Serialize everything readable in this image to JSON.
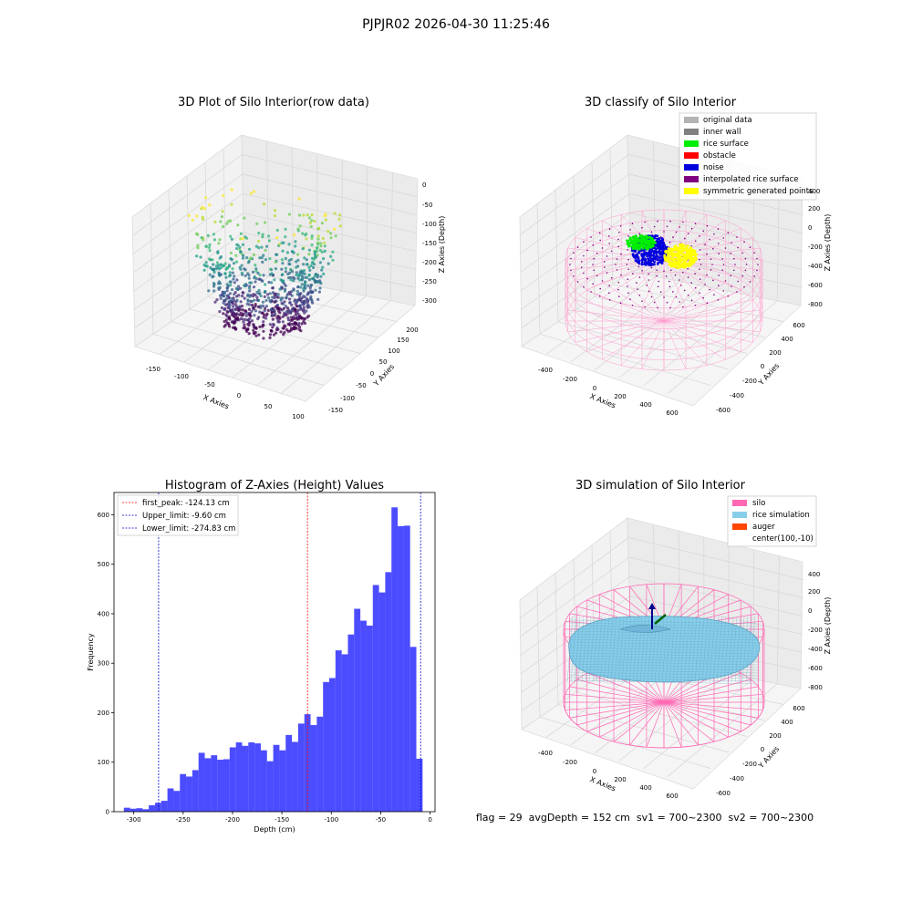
{
  "figure": {
    "suptitle": "PJPJR02 2026-04-30 11:25:46",
    "status_line": "flag = 29  avgDepth = 152 cm  sv1 = 700~2300  sv2 = 700~2300"
  },
  "panel_raw": {
    "title": "3D Plot of Silo Interior(row data)",
    "xlabel": "X Axies",
    "ylabel": "Y Axies",
    "zlabel": "Z Axies (Depth)",
    "x_ticks": [
      "-150",
      "-100",
      "-50",
      "0",
      "50",
      "100"
    ],
    "y_ticks": [
      "-150",
      "-100",
      "-50",
      "0",
      "50",
      "100",
      "150",
      "200"
    ],
    "z_ticks": [
      "0",
      "-50",
      "-100",
      "-150",
      "-200",
      "-250",
      "-300"
    ],
    "colormap": "viridis"
  },
  "panel_classify": {
    "title": "3D classify of Silo Interior",
    "xlabel": "X Axies",
    "ylabel": "Y Axies",
    "zlabel": "Z Axies (Depth)",
    "x_ticks": [
      "-400",
      "-200",
      "0",
      "200",
      "400",
      "600"
    ],
    "y_ticks": [
      "-600",
      "-400",
      "-200",
      "0",
      "200",
      "400",
      "600"
    ],
    "z_ticks": [
      "400",
      "200",
      "0",
      "-200",
      "-400",
      "-600",
      "-800"
    ],
    "legend": [
      {
        "label": "original data",
        "color": "#b3b3b3"
      },
      {
        "label": "inner wall",
        "color": "#808080"
      },
      {
        "label": "rice surface",
        "color": "#00ee00"
      },
      {
        "label": "obstacle",
        "color": "#ff0000"
      },
      {
        "label": "noise",
        "color": "#0000dd"
      },
      {
        "label": "interpolated rice surface",
        "color": "#800080"
      },
      {
        "label": "symmetric generated points",
        "color": "#ffff00"
      }
    ]
  },
  "panel_sim": {
    "title": "3D simulation of Silo Interior",
    "xlabel": "X Axies",
    "ylabel": "Y Axies",
    "zlabel": "Z Axies (Depth)",
    "x_ticks": [
      "-400",
      "-200",
      "0",
      "200",
      "400",
      "600"
    ],
    "y_ticks": [
      "-600",
      "-400",
      "-200",
      "0",
      "200",
      "400",
      "600"
    ],
    "z_ticks": [
      "400",
      "200",
      "0",
      "-200",
      "-400",
      "-600",
      "-800"
    ],
    "legend": [
      {
        "label": "silo",
        "color": "#ff69b4"
      },
      {
        "label": "rice simulation",
        "color": "#87ceeb"
      },
      {
        "label": "auger",
        "color": "#ff4500"
      },
      {
        "label": "center(100,-10)",
        "color": "#ffffff"
      }
    ]
  },
  "chart_data": {
    "type": "bar",
    "title": "Histogram of Z-Axies (Height) Values",
    "xlabel": "Depth (cm)",
    "ylabel": "Frequency",
    "bar_color": "#0000ff",
    "xlim": [
      -320,
      5
    ],
    "ylim": [
      0,
      645
    ],
    "x_ticks": [
      -300,
      -250,
      -200,
      -150,
      -100,
      -50,
      0
    ],
    "y_ticks": [
      0,
      100,
      200,
      300,
      400,
      500,
      600
    ],
    "bin_edges": [
      -310,
      -303.7,
      -297.4,
      -291.1,
      -284.8,
      -278.5,
      -272.2,
      -265.9,
      -259.6,
      -253.3,
      -247,
      -240.7,
      -234.4,
      -228.1,
      -221.8,
      -215.5,
      -209.2,
      -202.9,
      -196.6,
      -190.3,
      -184,
      -177.7,
      -171.4,
      -165.1,
      -158.8,
      -152.5,
      -146.2,
      -139.9,
      -133.6,
      -127.3,
      -121,
      -114.7,
      -108.4,
      -102.1,
      -95.8,
      -89.5,
      -83.2,
      -76.9,
      -70.6,
      -64.3,
      -58,
      -51.7,
      -45.4,
      -39.1,
      -32.8,
      -26.5,
      -20.2,
      -13.9,
      -7.6
    ],
    "values": [
      8,
      6,
      7,
      5,
      13,
      18,
      22,
      47,
      42,
      76,
      71,
      84,
      119,
      108,
      114,
      105,
      106,
      130,
      140,
      133,
      140,
      138,
      124,
      102,
      135,
      124,
      155,
      141,
      178,
      197,
      175,
      192,
      262,
      270,
      326,
      318,
      358,
      410,
      386,
      376,
      458,
      443,
      484,
      615,
      577,
      578,
      333,
      107
    ],
    "vlines": [
      {
        "label": "first_peak: -124.13 cm",
        "x": -124.13,
        "color": "#ff0000"
      },
      {
        "label": "Upper_limit: -9.60 cm",
        "x": -9.6,
        "color": "#0000cc"
      },
      {
        "label": "Lower_limit: -274.83 cm",
        "x": -274.83,
        "color": "#0000cc"
      }
    ]
  }
}
